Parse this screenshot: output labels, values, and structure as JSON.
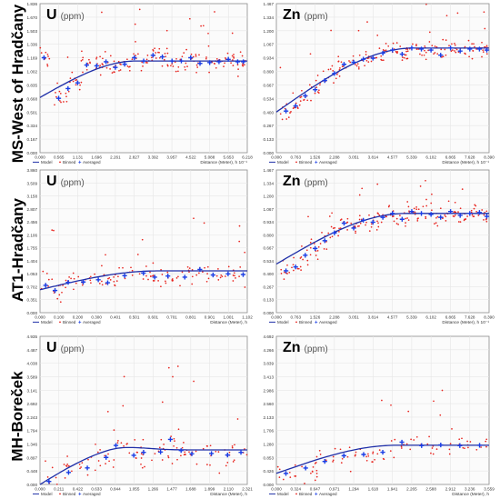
{
  "figure": {
    "row_labels": [
      "MS-West of Hradčany",
      "AT1-Hradčany",
      "MH-Boreček"
    ],
    "unit_text": "(ppm)",
    "legend": {
      "model": "Model",
      "binned": "Binned",
      "averaged": "Averaged"
    },
    "colors": {
      "model": "#1f2fa8",
      "binned": "#e8231d",
      "averaged": "#1a3ee6",
      "frame": "#8c8c8c",
      "grid": "#e6e6e6",
      "plot_bg": "#fbfbfb"
    }
  },
  "chart_data": [
    {
      "type": "scatter",
      "row": 0,
      "col": 0,
      "element": "U",
      "y_ticks": [
        "0.000",
        "0.167",
        "0.334",
        "0.501",
        "0.668",
        "0.835",
        "1.002",
        "1.169",
        "1.336",
        "1.503",
        "1.670",
        "1.836"
      ],
      "x_ticks": [
        "0.000",
        "0.565",
        "1.131",
        "1.696",
        "2.261",
        "2.827",
        "3.392",
        "3.957",
        "4.522",
        "5.088",
        "5.653",
        "6.218"
      ],
      "xlabel": "Distance (Meter), h",
      "x_exponent": "10⁻¹",
      "xlim": [
        0,
        6.218
      ],
      "ylim": [
        0,
        1.836
      ],
      "model": {
        "nugget": 0.68,
        "sill": 1.13,
        "range": 2.9
      },
      "averaged": [
        [
          0.12,
          1.17
        ],
        [
          0.56,
          0.67
        ],
        [
          0.84,
          0.79
        ],
        [
          1.13,
          0.86
        ],
        [
          1.4,
          1.08
        ],
        [
          1.7,
          1.07
        ],
        [
          1.98,
          1.12
        ],
        [
          2.26,
          1.05
        ],
        [
          2.54,
          1.09
        ],
        [
          2.83,
          1.17
        ],
        [
          3.11,
          1.13
        ],
        [
          3.39,
          1.2
        ],
        [
          3.67,
          1.18
        ],
        [
          3.96,
          1.13
        ],
        [
          4.24,
          1.13
        ],
        [
          4.52,
          1.17
        ],
        [
          4.8,
          1.1
        ],
        [
          5.09,
          1.11
        ],
        [
          5.37,
          1.12
        ],
        [
          5.65,
          1.15
        ],
        [
          5.93,
          1.12
        ],
        [
          6.1,
          1.12
        ]
      ],
      "binned_spread": 0.22
    },
    {
      "type": "scatter",
      "row": 0,
      "col": 1,
      "element": "Zn",
      "y_ticks": [
        "0.000",
        "0.133",
        "0.267",
        "0.400",
        "0.534",
        "0.667",
        "0.800",
        "0.934",
        "1.067",
        "1.200",
        "1.334",
        "1.467"
      ],
      "x_ticks": [
        "0.000",
        "0.763",
        "1.526",
        "2.288",
        "3.051",
        "3.814",
        "4.577",
        "5.339",
        "6.102",
        "6.865",
        "7.628",
        "8.390"
      ],
      "xlabel": "Distance (Meter), h",
      "x_exponent": "10⁻¹",
      "xlim": [
        0,
        8.39
      ],
      "ylim": [
        0,
        1.467
      ],
      "model": {
        "nugget": 0.4,
        "sill": 1.03,
        "range": 5.4
      },
      "averaged": [
        [
          0.38,
          0.41
        ],
        [
          0.76,
          0.46
        ],
        [
          1.14,
          0.56
        ],
        [
          1.53,
          0.62
        ],
        [
          1.91,
          0.71
        ],
        [
          2.29,
          0.78
        ],
        [
          2.67,
          0.87
        ],
        [
          3.05,
          0.89
        ],
        [
          3.43,
          0.92
        ],
        [
          3.81,
          0.93
        ],
        [
          4.2,
          0.98
        ],
        [
          4.58,
          1.01
        ],
        [
          4.96,
          0.97
        ],
        [
          5.34,
          1.03
        ],
        [
          5.72,
          1.02
        ],
        [
          6.1,
          1.01
        ],
        [
          6.48,
          0.96
        ],
        [
          6.87,
          1.03
        ],
        [
          7.25,
          1.0
        ],
        [
          7.63,
          1.02
        ],
        [
          8.01,
          1.02
        ],
        [
          8.3,
          1.01
        ]
      ],
      "binned_spread": 0.16
    },
    {
      "type": "scatter",
      "row": 1,
      "col": 0,
      "element": "U",
      "y_ticks": [
        "0.000",
        "0.351",
        "0.702",
        "1.053",
        "1.404",
        "1.755",
        "2.106",
        "2.456",
        "2.807",
        "3.158",
        "3.509",
        "3.860"
      ],
      "x_ticks": [
        "0.000",
        "0.100",
        "0.200",
        "0.300",
        "0.401",
        "0.501",
        "0.601",
        "0.701",
        "0.801",
        "0.901",
        "1.001",
        "1.102"
      ],
      "xlabel": "Distance (Meter), h",
      "x_exponent": "",
      "xlim": [
        0,
        1.102
      ],
      "ylim": [
        0,
        3.86
      ],
      "model": {
        "nugget": 0.62,
        "sill": 1.13,
        "range": 0.62
      },
      "averaged": [
        [
          0.03,
          0.74
        ],
        [
          0.08,
          0.6
        ],
        [
          0.15,
          0.82
        ],
        [
          0.23,
          0.83
        ],
        [
          0.31,
          0.89
        ],
        [
          0.36,
          0.81
        ],
        [
          0.45,
          1.0
        ],
        [
          0.55,
          1.07
        ],
        [
          0.61,
          0.96
        ],
        [
          0.68,
          0.99
        ],
        [
          0.77,
          0.96
        ],
        [
          0.85,
          1.17
        ],
        [
          0.92,
          1.02
        ],
        [
          1.0,
          1.05
        ],
        [
          1.08,
          1.03
        ]
      ],
      "binned_spread": 0.55
    },
    {
      "type": "scatter",
      "row": 1,
      "col": 1,
      "element": "Zn",
      "y_ticks": [
        "0.000",
        "0.133",
        "0.267",
        "0.400",
        "0.534",
        "0.667",
        "0.800",
        "0.934",
        "1.067",
        "1.200",
        "1.334",
        "1.467"
      ],
      "x_ticks": [
        "0.000",
        "0.763",
        "1.526",
        "2.288",
        "3.051",
        "3.814",
        "4.577",
        "5.339",
        "6.102",
        "6.865",
        "7.628",
        "8.390"
      ],
      "xlabel": "Distance (Meter), h",
      "x_exponent": "10⁻¹",
      "xlim": [
        0,
        8.39
      ],
      "ylim": [
        0,
        1.467
      ],
      "model": {
        "nugget": 0.5,
        "sill": 1.02,
        "range": 5.1
      },
      "averaged": [
        [
          0.38,
          0.43
        ],
        [
          0.76,
          0.47
        ],
        [
          1.14,
          0.59
        ],
        [
          1.53,
          0.66
        ],
        [
          1.91,
          0.74
        ],
        [
          2.29,
          0.82
        ],
        [
          2.67,
          0.92
        ],
        [
          3.05,
          0.87
        ],
        [
          3.43,
          0.95
        ],
        [
          3.81,
          0.93
        ],
        [
          4.2,
          0.98
        ],
        [
          4.58,
          1.02
        ],
        [
          4.96,
          0.96
        ],
        [
          5.34,
          1.04
        ],
        [
          5.72,
          1.02
        ],
        [
          6.1,
          1.01
        ],
        [
          6.48,
          0.98
        ],
        [
          6.87,
          1.04
        ],
        [
          7.25,
          1.0
        ],
        [
          7.63,
          1.02
        ],
        [
          8.01,
          1.03
        ],
        [
          8.3,
          0.99
        ]
      ],
      "binned_spread": 0.17
    },
    {
      "type": "scatter",
      "row": 2,
      "col": 0,
      "element": "U",
      "y_ticks": [
        "0.000",
        "0.448",
        "0.897",
        "1.346",
        "1.794",
        "2.243",
        "2.692",
        "3.141",
        "3.589",
        "4.038",
        "4.487",
        "4.935"
      ],
      "x_ticks": [
        "0.000",
        "0.211",
        "0.422",
        "0.633",
        "0.844",
        "1.055",
        "1.266",
        "1.477",
        "1.688",
        "1.899",
        "2.110",
        "2.321"
      ],
      "xlabel": "Distance (Meter), h",
      "x_exponent": "",
      "xlim": [
        0,
        2.321
      ],
      "ylim": [
        0,
        4.935
      ],
      "model": {
        "nugget": 0.0,
        "sill": 1.15,
        "range": 0.95,
        "bump": 0.08
      },
      "averaged": [
        [
          0.1,
          0.1
        ],
        [
          0.32,
          0.4
        ],
        [
          0.53,
          0.55
        ],
        [
          0.74,
          0.9
        ],
        [
          0.85,
          1.3
        ],
        [
          1.05,
          0.97
        ],
        [
          1.16,
          1.07
        ],
        [
          1.35,
          1.08
        ],
        [
          1.46,
          1.5
        ],
        [
          1.58,
          1.13
        ],
        [
          1.7,
          1.02
        ],
        [
          1.92,
          1.03
        ],
        [
          2.1,
          0.98
        ],
        [
          2.25,
          1.07
        ]
      ],
      "binned_spread": 0.85
    },
    {
      "type": "scatter",
      "row": 2,
      "col": 1,
      "element": "Zn",
      "y_ticks": [
        "0.000",
        "0.426",
        "0.853",
        "1.280",
        "1.706",
        "2.133",
        "2.560",
        "2.986",
        "3.413",
        "3.839",
        "4.266",
        "4.692"
      ],
      "x_ticks": [
        "0.000",
        "0.324",
        "0.647",
        "0.971",
        "1.294",
        "1.618",
        "1.941",
        "2.265",
        "2.588",
        "2.912",
        "3.236",
        "3.559"
      ],
      "xlabel": "Distance (Meter), h",
      "x_exponent": "",
      "xlim": [
        0,
        3.559
      ],
      "ylim": [
        0,
        4.692
      ],
      "model": {
        "nugget": 0.35,
        "sill": 1.24,
        "range": 2.0
      },
      "averaged": [
        [
          0.16,
          0.35
        ],
        [
          0.49,
          0.52
        ],
        [
          0.81,
          0.73
        ],
        [
          1.13,
          0.91
        ],
        [
          1.46,
          0.95
        ],
        [
          1.78,
          1.02
        ],
        [
          2.1,
          1.34
        ],
        [
          2.43,
          1.23
        ],
        [
          2.75,
          1.25
        ],
        [
          3.07,
          1.23
        ],
        [
          3.4,
          1.24
        ]
      ],
      "binned_spread": 0.7
    }
  ]
}
